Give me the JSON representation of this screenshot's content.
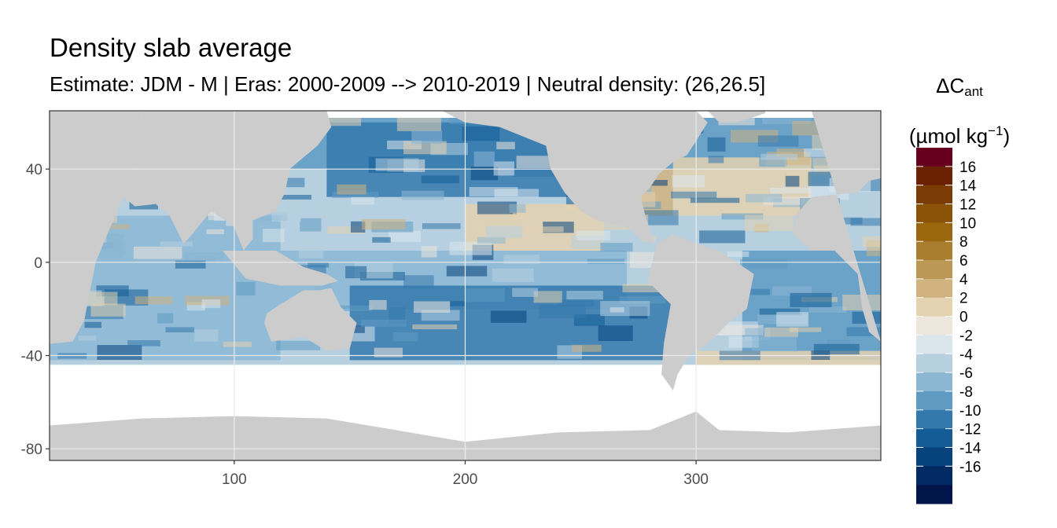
{
  "chart_data": {
    "type": "heatmap",
    "title": "Density slab average",
    "subtitle": "Estimate: JDM - M | Eras: 2000-2009 --> 2010-2019 | Neutral density: (26,26.5]",
    "legend": {
      "title_main": "ΔC",
      "title_sub": "ant",
      "unit_prefix": "(µmol kg",
      "unit_sup": "−1",
      "unit_suffix": ")",
      "placement": "right",
      "breaks": [
        16,
        14,
        12,
        10,
        8,
        6,
        4,
        2,
        0,
        -2,
        -4,
        -6,
        -8,
        -10,
        -12,
        -14,
        -16
      ],
      "colors": [
        "#67001f",
        "#6b2103",
        "#7a3b04",
        "#8a5307",
        "#9a670f",
        "#a97f2f",
        "#bc9856",
        "#d0b37f",
        "#e4d2b0",
        "#ece6dc",
        "#dbe6ec",
        "#b6d0e0",
        "#8bb7d3",
        "#5e9ac2",
        "#3479ad",
        "#135c96",
        "#06427c",
        "#022a62",
        "#02154a"
      ]
    },
    "x_axis": {
      "ticks": [
        100,
        200,
        300
      ],
      "range": [
        20,
        380
      ]
    },
    "y_axis": {
      "ticks": [
        40,
        0,
        -40,
        -80
      ],
      "range": [
        -85,
        65
      ]
    },
    "grid": true,
    "land_color": "#cccccc",
    "missing_color": "#ffffff",
    "summary_regions": [
      {
        "lon": [
          120,
          380
        ],
        "lat": [
          40,
          62
        ],
        "value": -8
      },
      {
        "lon": [
          140,
          250
        ],
        "lat": [
          28,
          60
        ],
        "value": -10
      },
      {
        "lon": [
          250,
          290
        ],
        "lat": [
          20,
          40
        ],
        "value": 4
      },
      {
        "lon": [
          290,
          350
        ],
        "lat": [
          20,
          45
        ],
        "value": 2
      },
      {
        "lon": [
          120,
          260
        ],
        "lat": [
          5,
          28
        ],
        "value": -4
      },
      {
        "lon": [
          200,
          260
        ],
        "lat": [
          5,
          25
        ],
        "value": 2
      },
      {
        "lon": [
          120,
          270
        ],
        "lat": [
          -20,
          5
        ],
        "value": -6
      },
      {
        "lon": [
          150,
          290
        ],
        "lat": [
          -42,
          -10
        ],
        "value": -10
      },
      {
        "lon": [
          320,
          380
        ],
        "lat": [
          -42,
          5
        ],
        "value": -8
      },
      {
        "lon": [
          20,
          120
        ],
        "lat": [
          -42,
          20
        ],
        "value": -6
      },
      {
        "lon": [
          300,
          380
        ],
        "lat": [
          -45,
          -38
        ],
        "value": 2
      }
    ]
  }
}
